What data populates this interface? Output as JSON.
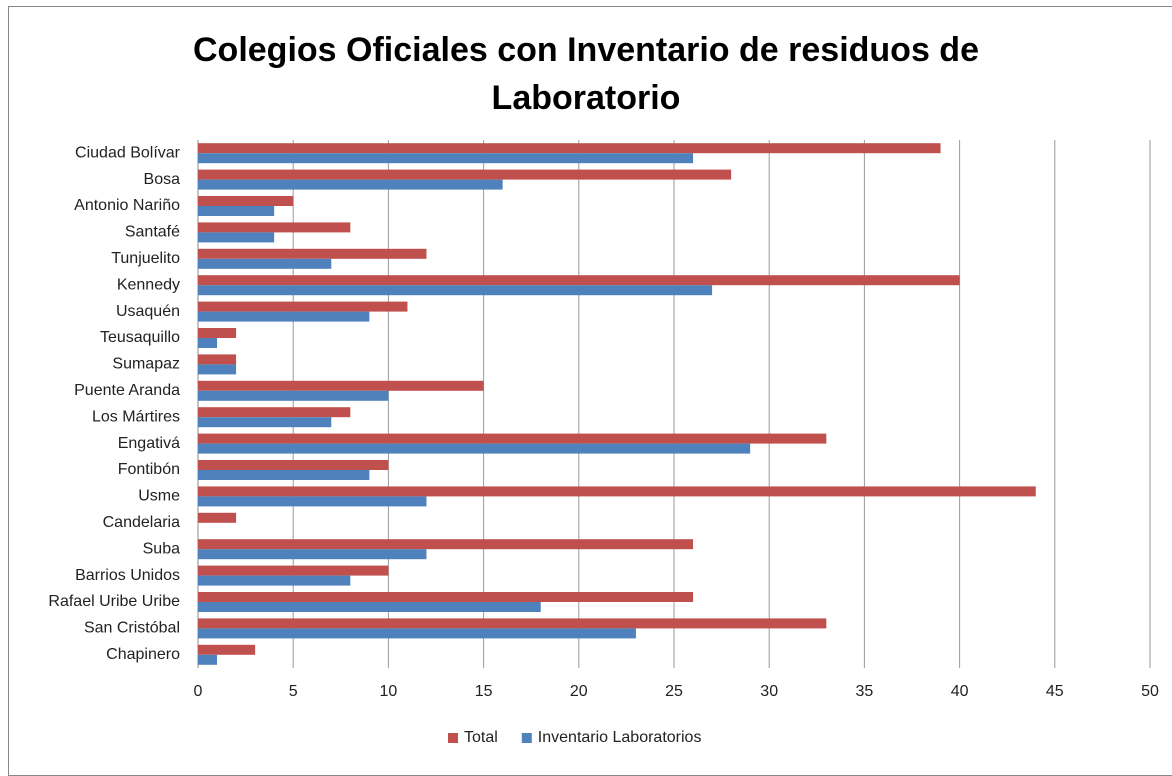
{
  "chart_data": {
    "type": "bar",
    "orientation": "horizontal",
    "title": "Colegios Oficiales con Inventario de residuos de Laboratorio",
    "categories": [
      "Ciudad Bolívar",
      "Bosa",
      "Antonio Nariño",
      "Santafé",
      "Tunjuelito",
      "Kennedy",
      "Usaquén",
      "Teusaquillo",
      "Sumapaz",
      "Puente Aranda",
      "Los Mártires",
      "Engativá",
      "Fontibón",
      "Usme",
      "Candelaria",
      "Suba",
      "Barrios Unidos",
      "Rafael Uribe Uribe",
      "San Cristóbal",
      "Chapinero"
    ],
    "series": [
      {
        "name": "Total",
        "color": "#c0504d",
        "values": [
          39,
          28,
          5,
          8,
          12,
          40,
          11,
          2,
          2,
          15,
          8,
          33,
          10,
          44,
          2,
          26,
          10,
          26,
          33,
          3
        ]
      },
      {
        "name": "Inventario Laboratorios",
        "color": "#4f81bd",
        "values": [
          26,
          16,
          4,
          4,
          7,
          27,
          9,
          1,
          2,
          10,
          7,
          29,
          9,
          12,
          0,
          12,
          8,
          18,
          23,
          1
        ]
      }
    ],
    "xlim": [
      0,
      50
    ],
    "xticks": [
      0,
      5,
      10,
      15,
      20,
      25,
      30,
      35,
      40,
      45,
      50
    ],
    "grid": true,
    "legend": "bottom"
  }
}
